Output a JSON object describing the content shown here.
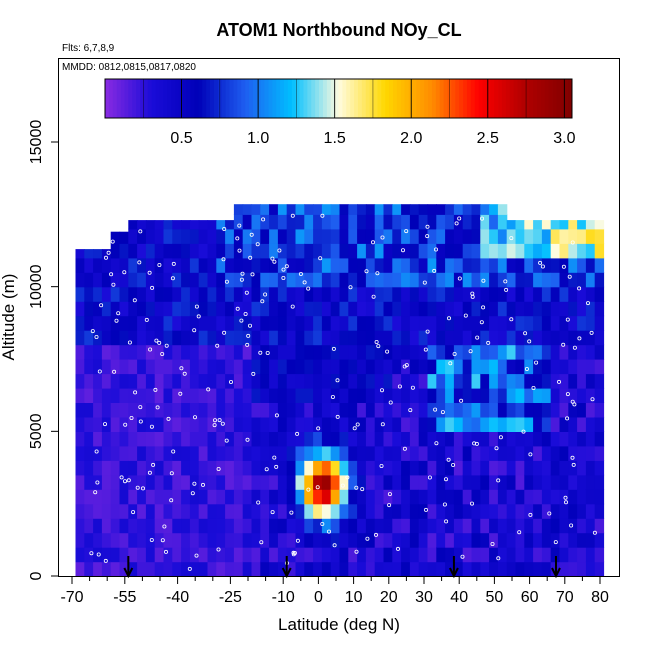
{
  "chart_data": {
    "type": "heatmap",
    "title": "ATOM1 Northbound NOy_CL",
    "annotations": [
      "Flts: 6,7,8,9",
      "MMDD: 0812,0815,0817,0820"
    ],
    "xlabel": "Latitude (deg N)",
    "ylabel": "Altitude (m)",
    "xlim": [
      -70,
      85
    ],
    "ylim": [
      0,
      17500
    ],
    "x_major_ticks": [
      -70,
      -55,
      -40,
      -25,
      -10,
      0,
      10,
      20,
      30,
      40,
      50,
      60,
      70,
      80
    ],
    "x_tick_labels": [
      "-70",
      "-55",
      "-40",
      "-25",
      "-10",
      "0",
      "10",
      "20",
      "30",
      "40",
      "50",
      "60",
      "70",
      "80"
    ],
    "x_minor_ticks": [
      -65,
      -60,
      -50,
      -45,
      -35,
      -30,
      -20,
      -15,
      -5,
      5,
      15,
      25,
      35,
      45,
      55,
      65,
      75
    ],
    "y_ticks": [
      0,
      5000,
      10000,
      15000
    ],
    "y_tick_labels": [
      "0",
      "5000",
      "10000",
      "15000"
    ],
    "colorbar": {
      "range": [
        0,
        3.05
      ],
      "ticks": [
        0.5,
        1.0,
        1.5,
        2.0,
        2.5,
        3.0
      ],
      "tick_labels": [
        "0.5",
        "1.0",
        "1.5",
        "2.0",
        "2.5",
        "3.0"
      ],
      "colors": [
        "#8a2be2",
        "#1a0cd8",
        "#0000b8",
        "#1e5ef0",
        "#00bfff",
        "#fffce0",
        "#ffd700",
        "#ff8c00",
        "#ff0000",
        "#b00000",
        "#800000"
      ]
    },
    "profile_markers_lat": [
      -54,
      -9,
      38.5,
      67.5
    ],
    "data_extent": {
      "lat": [
        -69,
        80
      ],
      "alt_top_m": [
        11300,
        12300,
        12850,
        12300
      ]
    },
    "enhancement": {
      "center_lat": 0,
      "center_alt_m": 2900,
      "peak_value": 2.8
    }
  }
}
